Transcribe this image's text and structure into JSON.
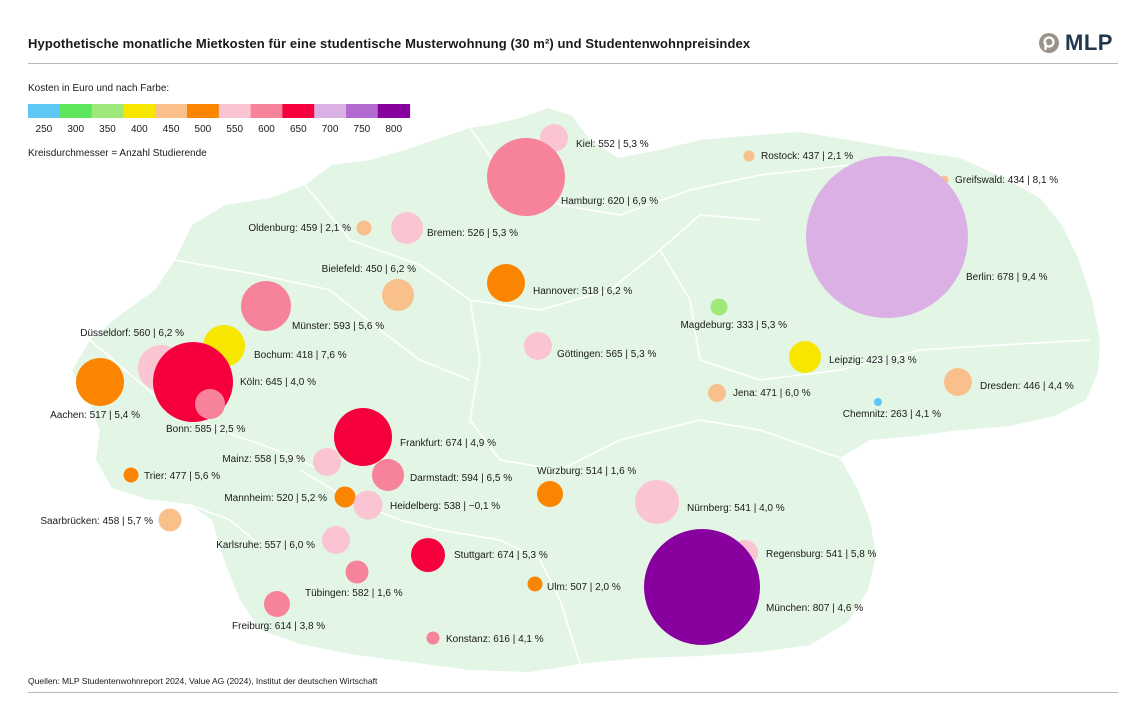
{
  "header": {
    "title": "Hypothetische monatliche Mietkosten für eine studentische Musterwohnung (30 m²) und Studentenwohnpreisindex",
    "logo_text": "MLP"
  },
  "legend": {
    "caption": "Kosten in Euro und nach Farbe:",
    "size_note": "Kreisdurchmesser = Anzahl Studierende",
    "bins": [
      {
        "label": "250",
        "color": "#5bc8f5"
      },
      {
        "label": "300",
        "color": "#5ce65c"
      },
      {
        "label": "350",
        "color": "#9fe87a"
      },
      {
        "label": "400",
        "color": "#f7e600"
      },
      {
        "label": "450",
        "color": "#f9c08c"
      },
      {
        "label": "500",
        "color": "#fb8500"
      },
      {
        "label": "550",
        "color": "#fbc4d2"
      },
      {
        "label": "600",
        "color": "#f7839b"
      },
      {
        "label": "650",
        "color": "#f5003c"
      },
      {
        "label": "700",
        "color": "#dbb0e5"
      },
      {
        "label": "750",
        "color": "#b26ad1"
      },
      {
        "label": "800",
        "color": "#88009d"
      }
    ]
  },
  "map": {
    "land_color": "#e3f5e5",
    "border_color": "#ffffff",
    "cities": [
      {
        "name": "Kiel",
        "rent": 552,
        "index": "5,3 %",
        "label": "Kiel: 552 | 5,3 %"
      },
      {
        "name": "Hamburg",
        "rent": 620,
        "index": "6,9 %",
        "label": "Hamburg: 620 | 6,9 %"
      },
      {
        "name": "Rostock",
        "rent": 437,
        "index": "2,1 %",
        "label": "Rostock: 437 | 2,1 %"
      },
      {
        "name": "Greifswald",
        "rent": 434,
        "index": "8,1 %",
        "label": "Greifswald: 434 | 8,1 %"
      },
      {
        "name": "Berlin",
        "rent": 678,
        "index": "9,4 %",
        "label": "Berlin: 678 | 9,4 %"
      },
      {
        "name": "Oldenburg",
        "rent": 459,
        "index": "2,1 %",
        "label": "Oldenburg: 459 | 2,1 %"
      },
      {
        "name": "Bremen",
        "rent": 526,
        "index": "5,3 %",
        "label": "Bremen: 526 | 5,3 %"
      },
      {
        "name": "Bielefeld",
        "rent": 450,
        "index": "6,2 %",
        "label": "Bielefeld: 450 | 6,2 %"
      },
      {
        "name": "Hannover",
        "rent": 518,
        "index": "6,2 %",
        "label": "Hannover: 518 | 6,2 %"
      },
      {
        "name": "Münster",
        "rent": 593,
        "index": "5,6 %",
        "label": "Münster: 593 | 5,6 %"
      },
      {
        "name": "Magdeburg",
        "rent": 333,
        "index": "5,3 %",
        "label": "Magdeburg: 333 | 5,3 %"
      },
      {
        "name": "Düsseldorf",
        "rent": 560,
        "index": "6,2 %",
        "label": "Düsseldorf: 560 | 6,2 %"
      },
      {
        "name": "Bochum",
        "rent": 418,
        "index": "7,6 %",
        "label": "Bochum: 418 | 7,6 %"
      },
      {
        "name": "Göttingen",
        "rent": 565,
        "index": "5,3 %",
        "label": "Göttingen: 565 | 5,3 %"
      },
      {
        "name": "Leipzig",
        "rent": 423,
        "index": "9,3 %",
        "label": "Leipzig: 423 | 9,3 %"
      },
      {
        "name": "Köln",
        "rent": 645,
        "index": "4,0 %",
        "label": "Köln: 645 | 4,0 %"
      },
      {
        "name": "Aachen",
        "rent": 517,
        "index": "5,4 %",
        "label": "Aachen: 517 | 5,4 %"
      },
      {
        "name": "Jena",
        "rent": 471,
        "index": "6,0 %",
        "label": "Jena: 471 | 6,0 %"
      },
      {
        "name": "Dresden",
        "rent": 446,
        "index": "4,4 %",
        "label": "Dresden: 446 | 4,4 %"
      },
      {
        "name": "Bonn",
        "rent": 585,
        "index": "2,5 %",
        "label": "Bonn: 585 | 2,5 %"
      },
      {
        "name": "Chemnitz",
        "rent": 263,
        "index": "4,1 %",
        "label": "Chemnitz: 263 | 4,1 %"
      },
      {
        "name": "Frankfurt",
        "rent": 674,
        "index": "4,9 %",
        "label": "Frankfurt: 674 | 4,9 %"
      },
      {
        "name": "Mainz",
        "rent": 558,
        "index": "5,9 %",
        "label": "Mainz: 558 | 5,9 %"
      },
      {
        "name": "Trier",
        "rent": 477,
        "index": "5,6 %",
        "label": "Trier: 477 | 5,6 %"
      },
      {
        "name": "Darmstadt",
        "rent": 594,
        "index": "6,5 %",
        "label": "Darmstadt: 594 | 6,5 %"
      },
      {
        "name": "Würzburg",
        "rent": 514,
        "index": "1,6 %",
        "label": "Würzburg: 514 | 1,6 %"
      },
      {
        "name": "Mannheim",
        "rent": 520,
        "index": "5,2 %",
        "label": "Mannheim: 520 | 5,2 %"
      },
      {
        "name": "Heidelberg",
        "rent": 538,
        "index": "−0,1 %",
        "label": "Heidelberg: 538 | −0,1 %"
      },
      {
        "name": "Nürnberg",
        "rent": 541,
        "index": "4,0 %",
        "label": "Nürnberg: 541 | 4,0 %"
      },
      {
        "name": "Saarbrücken",
        "rent": 458,
        "index": "5,7 %",
        "label": "Saarbrücken: 458 | 5,7 %"
      },
      {
        "name": "Karlsruhe",
        "rent": 557,
        "index": "6,0 %",
        "label": "Karlsruhe: 557 | 6,0 %"
      },
      {
        "name": "Stuttgart",
        "rent": 674,
        "index": "5,3 %",
        "label": "Stuttgart: 674 | 5,3 %"
      },
      {
        "name": "Regensburg",
        "rent": 541,
        "index": "5,8 %",
        "label": "Regensburg: 541 | 5,8 %"
      },
      {
        "name": "Ulm",
        "rent": 507,
        "index": "2,0 %",
        "label": "Ulm: 507 | 2,0 %"
      },
      {
        "name": "Tübingen",
        "rent": 582,
        "index": "1,6 %",
        "label": "Tübingen: 582 | 1,6 %"
      },
      {
        "name": "München",
        "rent": 807,
        "index": "4,6 %",
        "label": "München: 807 | 4,6 %"
      },
      {
        "name": "Freiburg",
        "rent": 614,
        "index": "3,8 %",
        "label": "Freiburg: 614 | 3,8 %"
      },
      {
        "name": "Konstanz",
        "rent": 616,
        "index": "4,1 %",
        "label": "Konstanz: 616 | 4,1 %"
      }
    ]
  },
  "footer": {
    "source": "Quellen: MLP Studentenwohnreport 2024, Value AG (2024), Institut der deutschen Wirtschaft"
  }
}
